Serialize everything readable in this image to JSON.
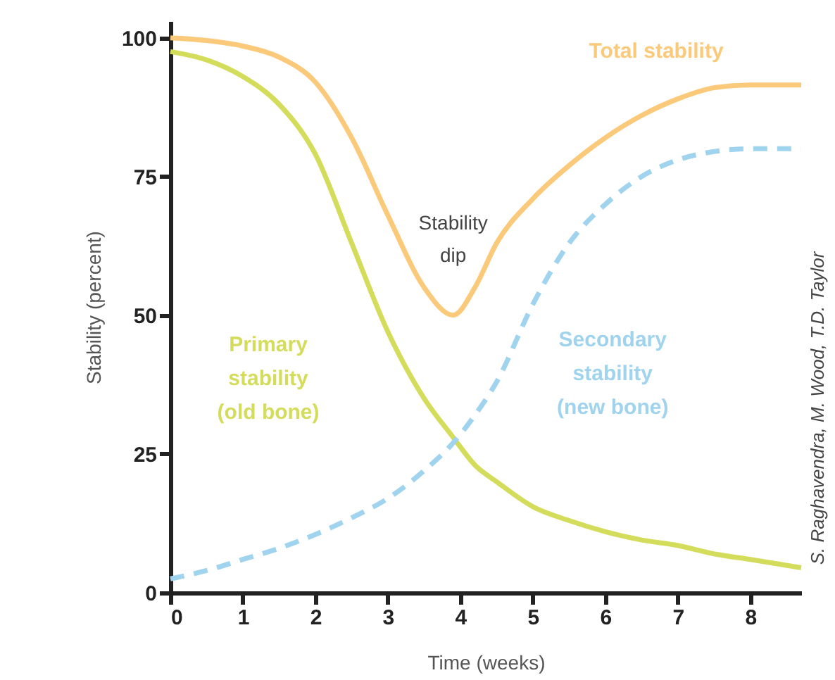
{
  "chart_data": {
    "type": "line",
    "xlabel": "Time (weeks)",
    "ylabel": "Stability (percent)",
    "xlim": [
      0,
      8.7
    ],
    "ylim": [
      0,
      103
    ],
    "xticks": [
      0,
      1,
      2,
      3,
      4,
      5,
      6,
      7,
      8
    ],
    "yticks": [
      0,
      25,
      50,
      75,
      100
    ],
    "grid": false,
    "marker": "none",
    "x": [
      0,
      0.5,
      1,
      1.5,
      2,
      2.5,
      3,
      3.5,
      3.9,
      4.2,
      4.5,
      5,
      5.5,
      6,
      6.5,
      7,
      7.5,
      8,
      8.7
    ],
    "series": [
      {
        "name": "Total stability",
        "color": "#fbc97a",
        "line_style": "solid",
        "values": [
          100,
          99.5,
          98.5,
          96.5,
          92,
          82,
          68,
          55,
          50,
          55,
          63,
          71,
          77,
          82,
          86,
          89,
          91,
          91.5,
          91.5
        ]
      },
      {
        "name": "Primary stability (old bone)",
        "color": "#d4dc5c",
        "line_style": "solid",
        "values": [
          97.5,
          96,
          93,
          88,
          79,
          63,
          47,
          35,
          28,
          23,
          20,
          15.5,
          13,
          11,
          9.5,
          8.5,
          7,
          6,
          4.5
        ]
      },
      {
        "name": "Secondary stability (new bone)",
        "color": "#9fd3ee",
        "line_style": "dashed",
        "values": [
          2.5,
          4,
          6,
          8,
          10.5,
          13.5,
          17,
          22,
          27,
          32,
          38,
          52,
          63,
          70,
          75,
          78,
          79.5,
          80,
          80
        ]
      }
    ],
    "annotations": [
      {
        "text": "Stability dip",
        "x": 3.9,
        "y": 50
      },
      "S. Raghavendra, M. Wood, T.D. Taylor"
    ]
  }
}
